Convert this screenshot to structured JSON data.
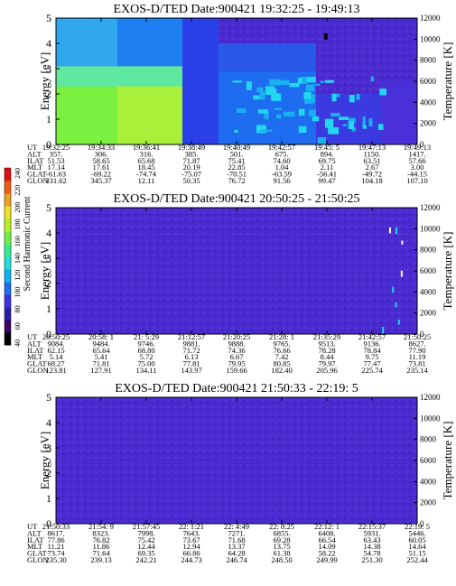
{
  "colors": {
    "background": "#4a2bd0",
    "accent_cyan": "#22d8f0",
    "accent_green": "#7cf040",
    "accent_blue": "#1e6cf0"
  },
  "colorbar": {
    "label": "Second Harmonic Current",
    "ticks": [
      "40",
      "60",
      "80",
      "100",
      "120",
      "140",
      "160",
      "180",
      "200",
      "220",
      "240"
    ],
    "colors": [
      "#000000",
      "#3a0066",
      "#2a1aa8",
      "#3a30e0",
      "#1a70f0",
      "#10b0f0",
      "#20e0d8",
      "#30f090",
      "#70f040",
      "#b8f020",
      "#f0e020",
      "#f0a020",
      "#f05a10",
      "#e01010"
    ]
  },
  "chart_data": [
    {
      "type": "heatmap",
      "title": "EXOS-D/TED   Date:900421  19:32:25 - 19:49:13",
      "ylabel": "Energy [eV]",
      "ylabel_right": "Temperature [K]",
      "ylim": [
        0,
        5
      ],
      "yticks": [
        "0",
        "1",
        "2",
        "3",
        "4",
        "5"
      ],
      "ylim_right": [
        0,
        12000
      ],
      "yticks_right": [
        "0",
        "2000",
        "4000",
        "6000",
        "8000",
        "10000",
        "12000"
      ],
      "row_labels": [
        "UT",
        "ALT",
        "ILAT",
        "MLT",
        "GLAT",
        "GLON"
      ],
      "columns": [
        [
          "19:32:25",
          "357.",
          "51.53",
          "17.14",
          "-61.63",
          "331.62"
        ],
        [
          "19:34:33",
          "306.",
          "58.65",
          "17.61",
          "-69.22",
          "345.37"
        ],
        [
          "19:36:41",
          "316.",
          "65.68",
          "18.45",
          "-74.74",
          "12.11"
        ],
        [
          "19:38:49",
          "385.",
          "71.87",
          "20.19",
          "-75.07",
          "50.35"
        ],
        [
          "19:40:49",
          "501.",
          "75.41",
          "22.85",
          "-70.51",
          "76.72"
        ],
        [
          "19:42:57",
          "675.",
          "74.60",
          "1.04",
          "-63.59",
          "91.56"
        ],
        [
          "19:45: 5",
          "894.",
          "69.75",
          "2.11",
          "-56.41",
          "99.47"
        ],
        [
          "19:47:13",
          "1150.",
          "63.51",
          "2.67",
          "-49.72",
          "104.18"
        ],
        [
          "19:49:13",
          "1417.",
          "57.66",
          "3.00",
          "-44.15",
          "107.10"
        ]
      ]
    },
    {
      "type": "heatmap",
      "title": "EXOS-D/TED   Date:900421  20:50:25 - 21:50:25",
      "ylabel": "Energy [eV]",
      "ylabel_right": "Temperature [K]",
      "ylim": [
        0,
        5
      ],
      "yticks": [
        "0",
        "1",
        "2",
        "3",
        "4",
        "5"
      ],
      "ylim_right": [
        0,
        12000
      ],
      "yticks_right": [
        "0",
        "2000",
        "4000",
        "6000",
        "8000",
        "10000",
        "12000"
      ],
      "row_labels": [
        "UT",
        "ALT",
        "ILAT",
        "MLT",
        "GLAT",
        "GLON"
      ],
      "columns": [
        [
          "20:50:25",
          "9084.",
          "62.15",
          "5.14",
          "68.27",
          "123.81"
        ],
        [
          "20:58: 1",
          "9484.",
          "65.64",
          "5.41",
          "71.81",
          "127.91"
        ],
        [
          "21: 5:29",
          "9746.",
          "68.80",
          "5.72",
          "75.00",
          "134.11"
        ],
        [
          "21:12:57",
          "9881.",
          "71.72",
          "6.13",
          "77.81",
          "143.97"
        ],
        [
          "21:20:25",
          "9888.",
          "74.36",
          "6.67",
          "79.95",
          "159.66"
        ],
        [
          "21:28: 1",
          "9765.",
          "76.66",
          "7.42",
          "80.85",
          "182.40"
        ],
        [
          "21:35:29",
          "9513.",
          "78.28",
          "8.44",
          "79.97",
          "205.96"
        ],
        [
          "21:42:57",
          "9136.",
          "78.84",
          "9.75",
          "77.47",
          "225.74"
        ],
        [
          "21:50:25",
          "8627.",
          "77.90",
          "11.19",
          "73.81",
          "235.14"
        ]
      ]
    },
    {
      "type": "heatmap",
      "title": "EXOS-D/TED   Date:900421  21:50:33 - 22:19: 5",
      "ylabel": "Energy [eV]",
      "ylabel_right": "Temperature [K]",
      "ylim": [
        0,
        5
      ],
      "yticks": [
        "0",
        "1",
        "2",
        "3",
        "4",
        "5"
      ],
      "ylim_right": [
        0,
        12000
      ],
      "yticks_right": [
        "0",
        "2000",
        "4000",
        "6000",
        "8000",
        "10000",
        "12000"
      ],
      "row_labels": [
        "UT",
        "ALT",
        "ILAT",
        "MLT",
        "GLAT",
        "GLON"
      ],
      "columns": [
        [
          "21:50:33",
          "8617.",
          "77.86",
          "11.21",
          "73.74",
          "235.30"
        ],
        [
          "21:54: 9",
          "8323.",
          "76.82",
          "11.86",
          "71.64",
          "239.13"
        ],
        [
          "21:57:45",
          "7998.",
          "75.42",
          "12.44",
          "69.35",
          "242.21"
        ],
        [
          "22: 1:21",
          "7643.",
          "73.67",
          "12.94",
          "66.86",
          "244.73"
        ],
        [
          "22: 4:49",
          "7271.",
          "71.68",
          "13.37",
          "64.28",
          "246.74"
        ],
        [
          "22: 8:25",
          "6855.",
          "69.28",
          "13.75",
          "61.38",
          "248.50"
        ],
        [
          "22:12: 1",
          "6408.",
          "66.54",
          "14.09",
          "58.22",
          "249.99"
        ],
        [
          "22:15:37",
          "5931.",
          "63.43",
          "14.38",
          "54.78",
          "251.30"
        ],
        [
          "22:19: 5",
          "5446.",
          "60.05",
          "14.64",
          "51.15",
          "252.44"
        ]
      ]
    }
  ]
}
